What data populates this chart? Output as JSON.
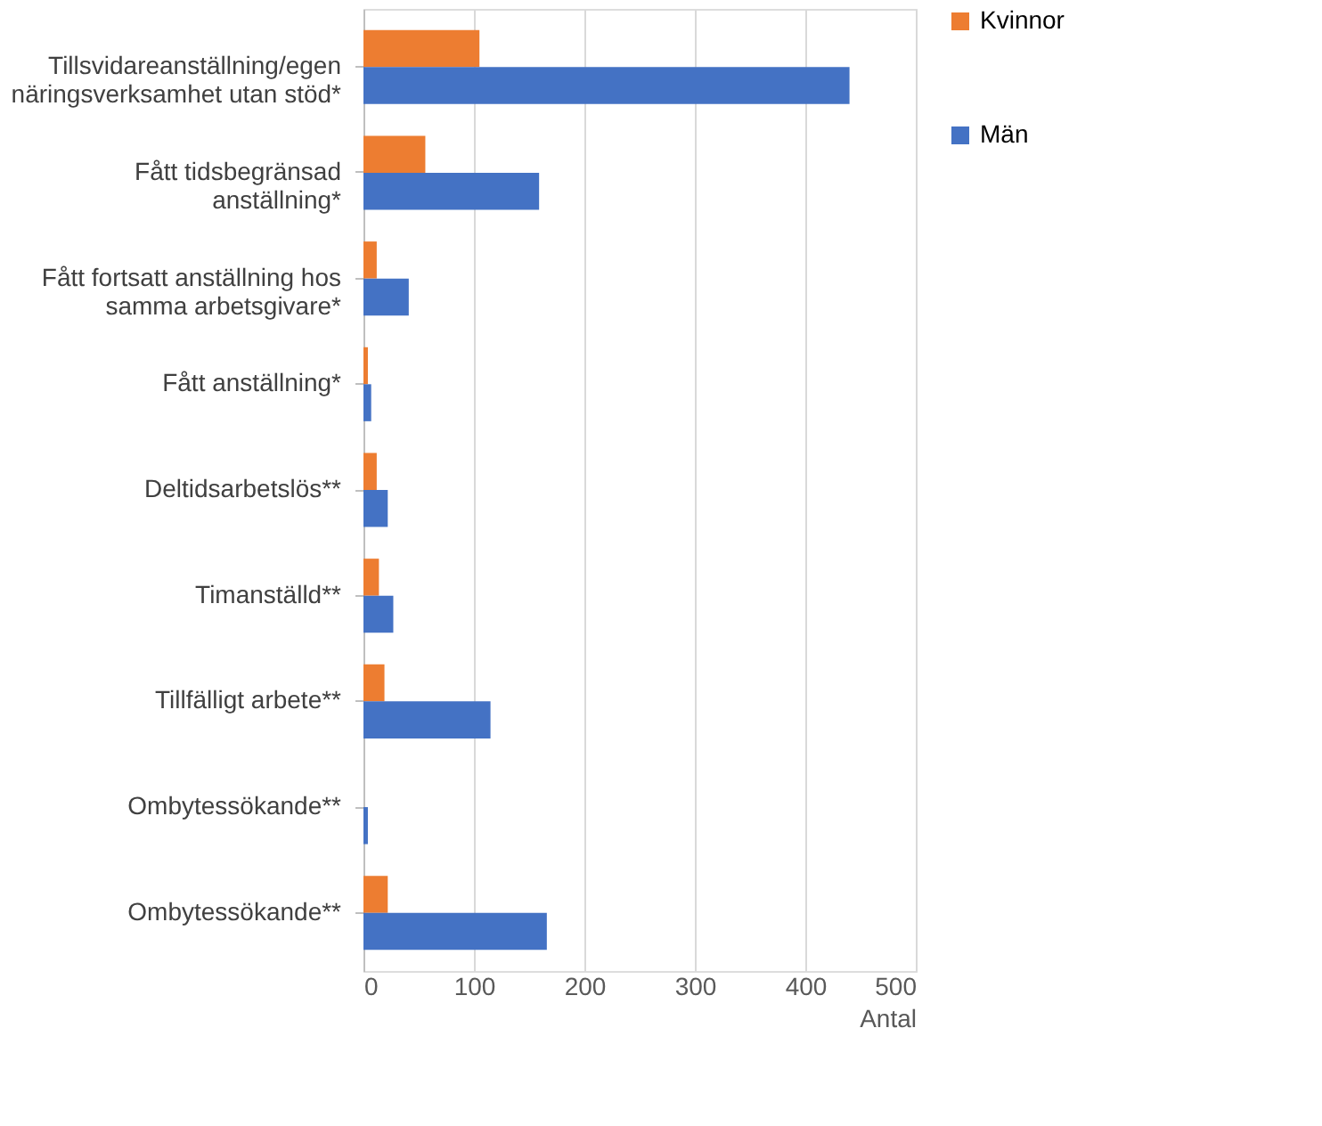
{
  "chart_data": {
    "type": "bar",
    "orientation": "horizontal",
    "xlabel": "Antal",
    "categories": [
      "Tillsvidareanställning/egen näringsverksamhet utan stöd*",
      "Fått tidsbegränsad anställning*",
      "Fått fortsatt anställning hos samma arbetsgivare*",
      "Fått anställning*",
      "Deltidsarbetslös**",
      "Timanställd**",
      "Tillfälligt arbete**",
      "Ombytessökande**",
      "Ombytessökande**"
    ],
    "series": [
      {
        "name": "Kvinnor",
        "color": "#ed7d31",
        "values": [
          105,
          56,
          12,
          4,
          12,
          14,
          19,
          0,
          22
        ]
      },
      {
        "name": "Män",
        "color": "#4472c4",
        "values": [
          440,
          159,
          41,
          7,
          22,
          27,
          115,
          4,
          166
        ]
      }
    ],
    "xlim": [
      0,
      500
    ],
    "xticks": [
      0,
      100,
      200,
      300,
      400,
      500
    ],
    "grid": "x",
    "legend": "right"
  }
}
